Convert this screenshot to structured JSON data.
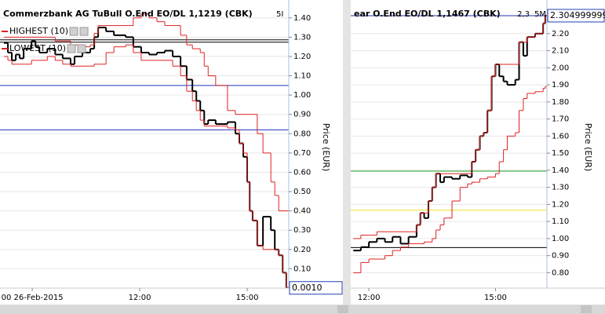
{
  "chart_data": [
    {
      "type": "line",
      "title": "Commerzbank AG TuBull O.End EO/DL 1,1219 (CBK)",
      "interval": "5I",
      "ylabel": "Price (EUR)",
      "last_label": "0.0010",
      "xlim": [
        8.1,
        16.16
      ],
      "xticks": [
        {
          "value": 9,
          "label": "00 26-Feb-2015"
        },
        {
          "value": 12,
          "label": "12:00"
        },
        {
          "value": 15,
          "label": "15:00"
        }
      ],
      "ylim": [
        0,
        1.46
      ],
      "yticks": [
        {
          "value": 0.1,
          "label": "0.10"
        },
        {
          "value": 0.2,
          "label": "0.20"
        },
        {
          "value": 0.3,
          "label": "0.30"
        },
        {
          "value": 0.4,
          "label": "0.40"
        },
        {
          "value": 0.5,
          "label": "0.50"
        },
        {
          "value": 0.6,
          "label": "0.60"
        },
        {
          "value": 0.7,
          "label": "0.70"
        },
        {
          "value": 0.8,
          "label": "0.80"
        },
        {
          "value": 0.9,
          "label": "0.90"
        },
        {
          "value": 1,
          "label": "1.00"
        },
        {
          "value": 1.1,
          "label": "1.10"
        },
        {
          "value": 1.2,
          "label": "1.20"
        },
        {
          "value": 1.3,
          "label": "1.30"
        },
        {
          "value": 1.4,
          "label": "1.40"
        }
      ],
      "grid": true,
      "hlines": [
        {
          "value": 1.286,
          "color": "#000000"
        },
        {
          "value": 1.274,
          "color": "#000000"
        },
        {
          "value": 1.05,
          "color": "#2030c0"
        },
        {
          "value": 0.82,
          "color": "#2030c0"
        }
      ],
      "x": [
        8.21,
        8.32,
        8.43,
        8.54,
        8.65,
        8.76,
        8.98,
        9.09,
        9.2,
        9.42,
        9.64,
        9.85,
        10.07,
        10.18,
        10.4,
        10.62,
        10.73,
        10.84,
        11.06,
        11.28,
        11.61,
        11.82,
        12.04,
        12.26,
        12.48,
        12.7,
        12.92,
        13.14,
        13.31,
        13.47,
        13.58,
        13.69,
        13.8,
        13.91,
        14.12,
        14.45,
        14.67,
        14.78,
        14.89,
        15.0,
        15.07,
        15.15,
        15.28,
        15.44,
        15.66,
        15.77,
        15.88,
        15.99,
        16.09
      ],
      "series": [
        {
          "color": "#000000",
          "values": [
            1.27,
            1.22,
            1.18,
            1.21,
            1.19,
            1.24,
            1.28,
            1.25,
            1.22,
            1.24,
            1.21,
            1.19,
            1.16,
            1.2,
            1.22,
            1.24,
            1.3,
            1.35,
            1.33,
            1.31,
            1.3,
            1.25,
            1.22,
            1.21,
            1.22,
            1.23,
            1.2,
            1.15,
            1.08,
            1.02,
            0.97,
            0.92,
            0.85,
            0.87,
            0.85,
            0.86,
            0.8,
            0.75,
            0.68,
            0.55,
            0.4,
            0.35,
            0.22,
            0.37,
            0.3,
            0.2,
            0.17,
            0.08,
            0.001
          ]
        },
        {
          "name": "HIGHEST (10)",
          "color": "#e02020",
          "values": [
            1.3,
            1.3,
            1.3,
            1.3,
            1.3,
            1.3,
            1.3,
            1.3,
            1.3,
            1.3,
            1.28,
            1.28,
            1.26,
            1.26,
            1.25,
            1.26,
            1.32,
            1.36,
            1.36,
            1.36,
            1.36,
            1.4,
            1.42,
            1.4,
            1.38,
            1.36,
            1.36,
            1.31,
            1.26,
            1.24,
            1.24,
            1.22,
            1.15,
            1.1,
            1.05,
            0.92,
            0.9,
            0.9,
            0.9,
            0.9,
            0.9,
            0.9,
            0.8,
            0.7,
            0.55,
            0.48,
            0.4,
            0.4,
            0.4
          ]
        },
        {
          "name": "LOWEST (10)",
          "color": "#e02020",
          "values": [
            1.2,
            1.18,
            1.16,
            1.16,
            1.16,
            1.16,
            1.18,
            1.18,
            1.18,
            1.2,
            1.18,
            1.16,
            1.15,
            1.15,
            1.15,
            1.15,
            1.16,
            1.16,
            1.22,
            1.25,
            1.26,
            1.22,
            1.18,
            1.18,
            1.18,
            1.18,
            1.15,
            1.1,
            1.02,
            0.97,
            0.92,
            0.87,
            0.84,
            0.84,
            0.84,
            0.83,
            0.82,
            0.75,
            0.7,
            0.55,
            0.4,
            0.35,
            0.22,
            0.2,
            0.2,
            0.2,
            0.17,
            0.08,
            0.001
          ]
        }
      ]
    },
    {
      "type": "line",
      "title": "ear O.End EO/DL 1,1467 (CBK)",
      "interval": "5M",
      "change": "2,3",
      "ylabel": "Price (EUR)",
      "last_label": "2.304999999",
      "xlim": [
        11.57,
        16.22
      ],
      "xticks": [
        {
          "value": 12,
          "label": "12:00"
        },
        {
          "value": 15,
          "label": "15:00"
        }
      ],
      "ylim": [
        0.71,
        2.36
      ],
      "yticks": [
        {
          "value": 0.8,
          "label": "0.80"
        },
        {
          "value": 0.9,
          "label": "0.90"
        },
        {
          "value": 1,
          "label": "1.00"
        },
        {
          "value": 1.1,
          "label": "1.10"
        },
        {
          "value": 1.2,
          "label": "1.20"
        },
        {
          "value": 1.3,
          "label": "1.30"
        },
        {
          "value": 1.4,
          "label": "1.40"
        },
        {
          "value": 1.5,
          "label": "1.50"
        },
        {
          "value": 1.6,
          "label": "1.60"
        },
        {
          "value": 1.7,
          "label": "1.70"
        },
        {
          "value": 1.8,
          "label": "1.80"
        },
        {
          "value": 1.9,
          "label": "1.90"
        },
        {
          "value": 2,
          "label": "2.00"
        },
        {
          "value": 2.1,
          "label": "2.10"
        },
        {
          "value": 2.2,
          "label": "2.20"
        }
      ],
      "grid": true,
      "hlines": [
        {
          "value": 2.305,
          "color": "#2030c0"
        },
        {
          "value": 1.395,
          "color": "#20a020"
        },
        {
          "value": 1.166,
          "color": "#e8e020"
        },
        {
          "value": 0.947,
          "color": "#000000"
        }
      ],
      "x": [
        11.63,
        11.81,
        12.0,
        12.19,
        12.38,
        12.56,
        12.75,
        12.94,
        13.13,
        13.22,
        13.31,
        13.41,
        13.5,
        13.59,
        13.69,
        13.78,
        13.97,
        14.16,
        14.34,
        14.44,
        14.53,
        14.63,
        14.72,
        14.81,
        14.91,
        15.0,
        15.09,
        15.19,
        15.28,
        15.47,
        15.56,
        15.66,
        15.75,
        15.94,
        16.13,
        16.18
      ],
      "series": [
        {
          "color": "#000000",
          "values": [
            0.93,
            0.95,
            0.98,
            1.0,
            0.98,
            1.01,
            0.97,
            1.01,
            1.08,
            1.15,
            1.12,
            1.22,
            1.3,
            1.38,
            1.33,
            1.36,
            1.35,
            1.37,
            1.36,
            1.45,
            1.52,
            1.6,
            1.62,
            1.75,
            1.95,
            2.02,
            1.95,
            1.92,
            1.9,
            1.93,
            2.15,
            2.07,
            2.18,
            2.2,
            2.26,
            2.305
          ]
        },
        {
          "color": "#e02020",
          "values": [
            1.0,
            1.02,
            1.02,
            1.04,
            1.04,
            1.04,
            1.04,
            1.04,
            1.08,
            1.15,
            1.15,
            1.22,
            1.3,
            1.38,
            1.38,
            1.38,
            1.38,
            1.38,
            1.38,
            1.45,
            1.52,
            1.6,
            1.62,
            1.75,
            1.95,
            2.02,
            2.02,
            2.02,
            2.02,
            2.02,
            2.15,
            2.15,
            2.18,
            2.2,
            2.26,
            2.305
          ]
        },
        {
          "color": "#e02020",
          "values": [
            0.8,
            0.86,
            0.88,
            0.88,
            0.9,
            0.93,
            0.95,
            0.97,
            0.97,
            0.97,
            0.98,
            0.98,
            1.0,
            1.05,
            1.08,
            1.12,
            1.22,
            1.3,
            1.32,
            1.33,
            1.33,
            1.35,
            1.35,
            1.36,
            1.36,
            1.38,
            1.45,
            1.52,
            1.6,
            1.62,
            1.75,
            1.82,
            1.85,
            1.86,
            1.88,
            1.89
          ]
        }
      ]
    }
  ]
}
